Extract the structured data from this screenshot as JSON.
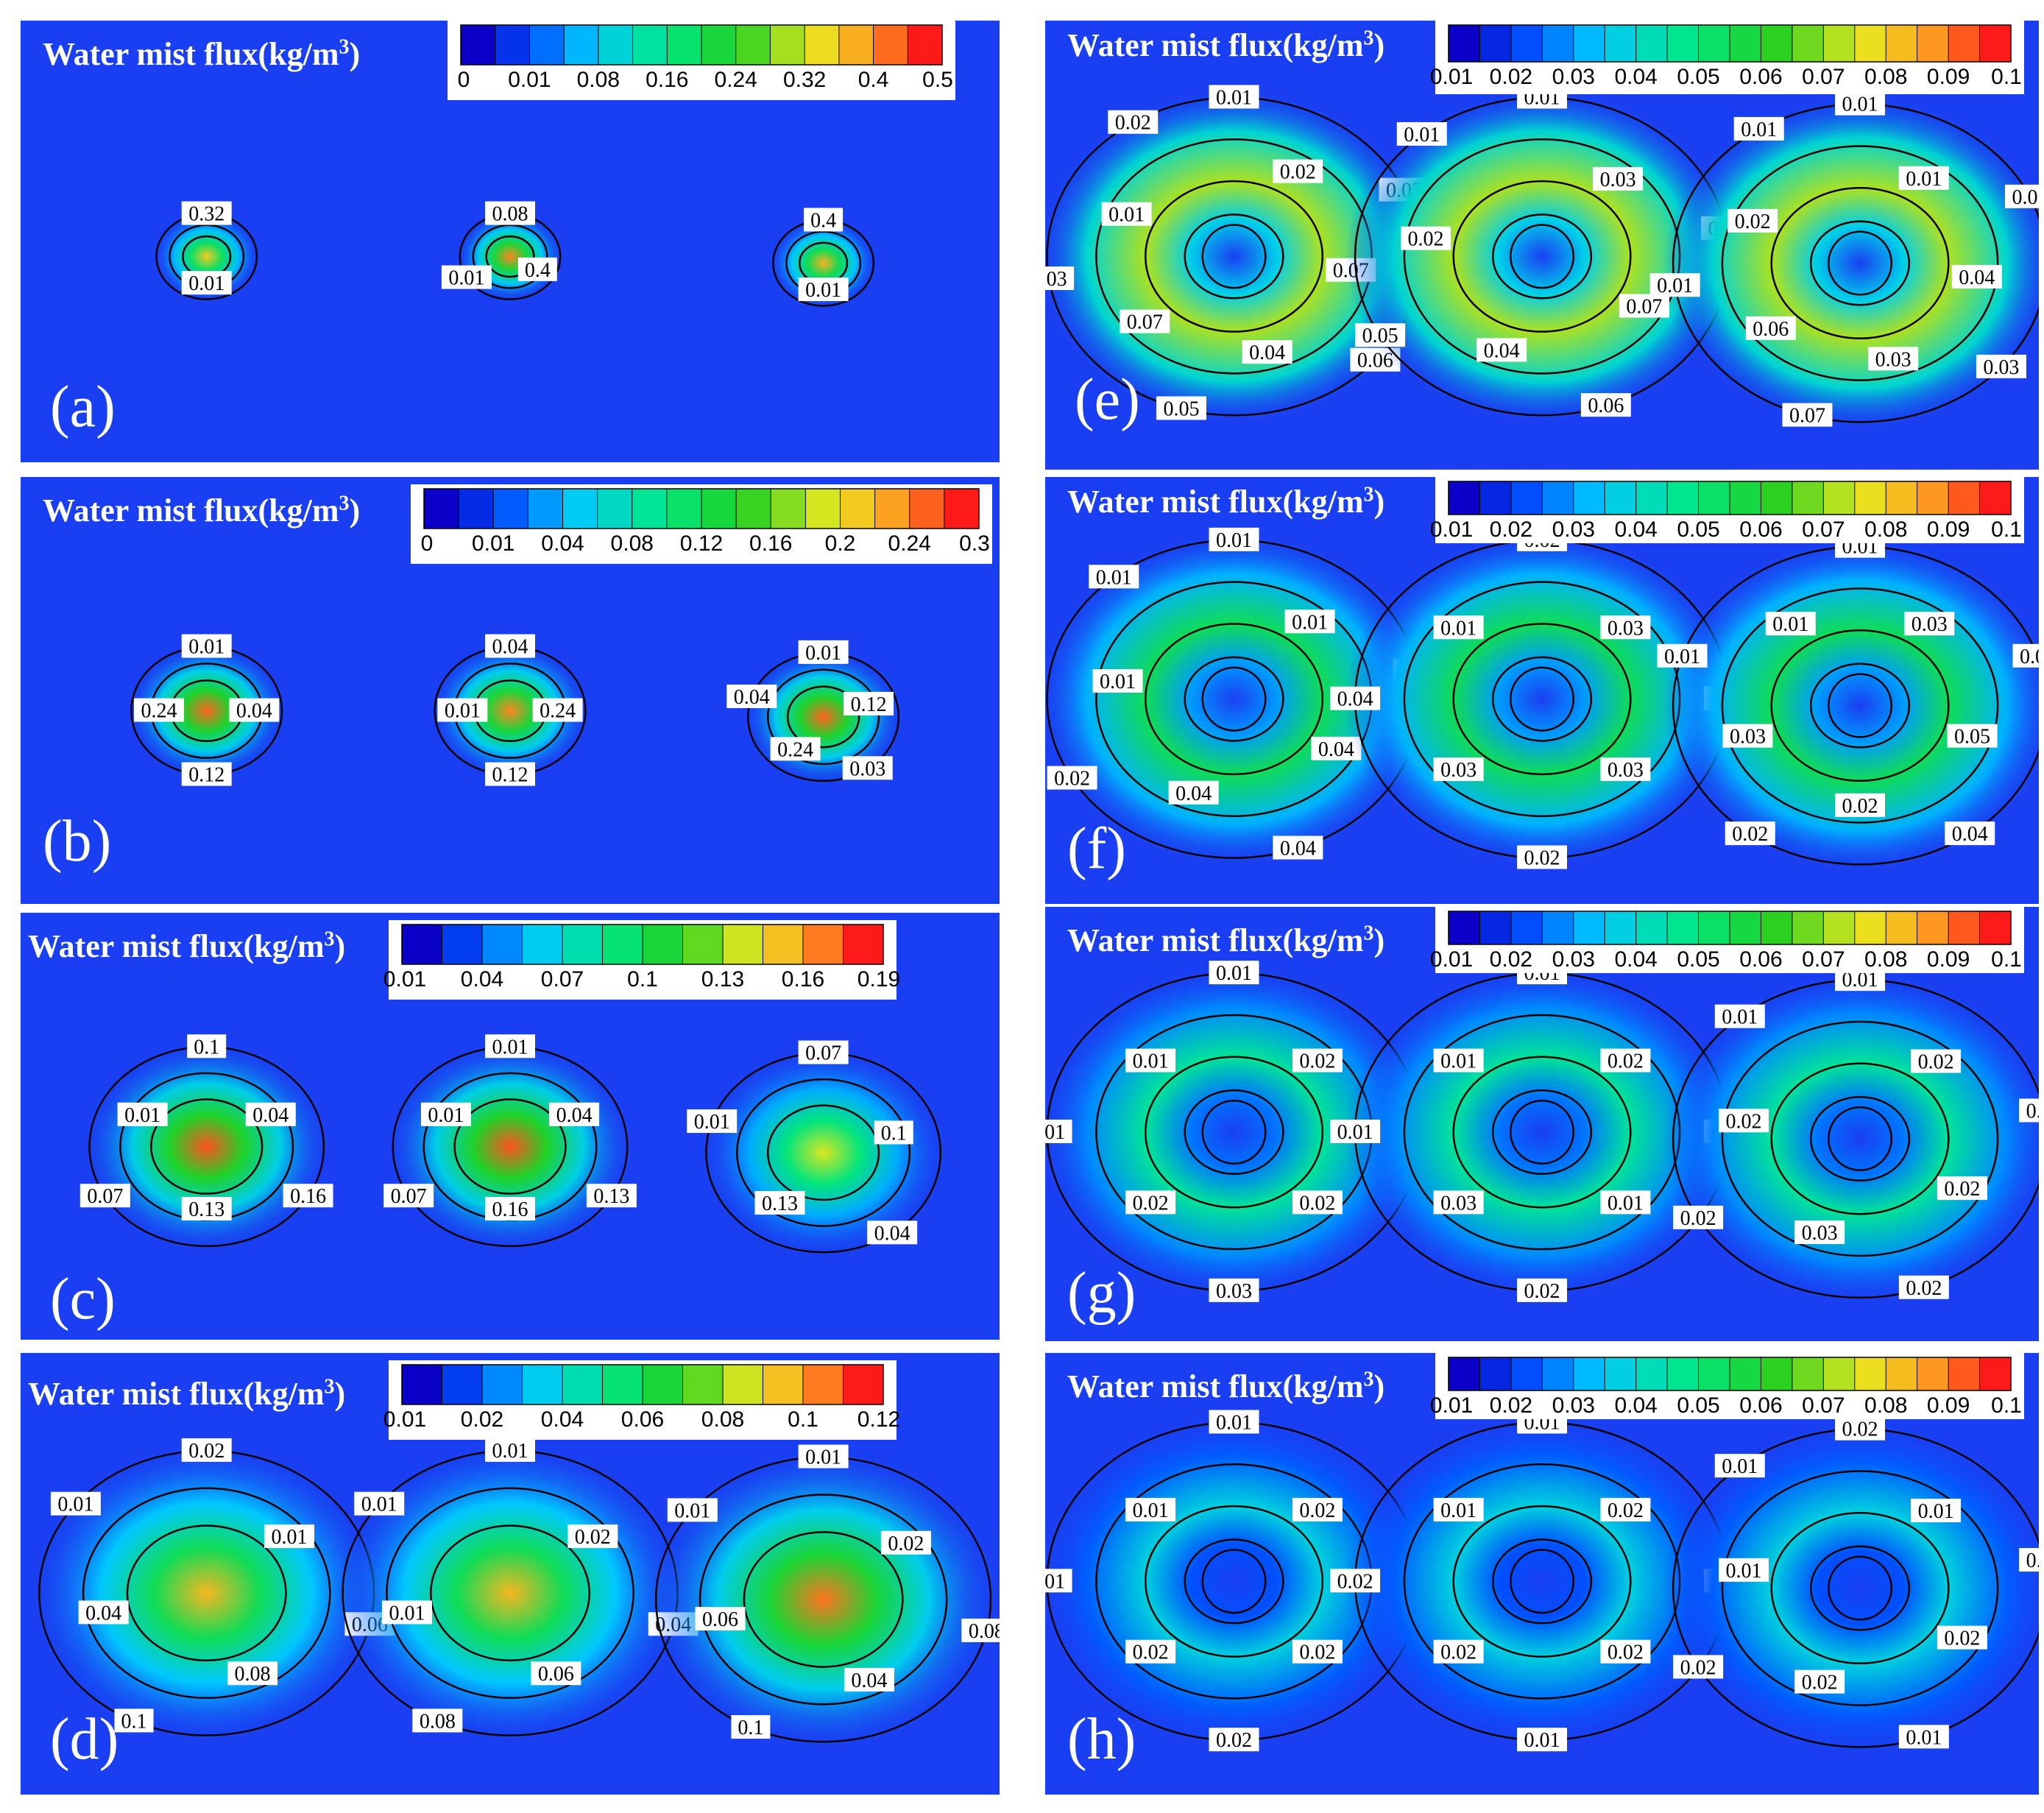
{
  "figure": {
    "title_prefix": "Water mist flux(kg/m",
    "title_exp": "3",
    "title_suffix": ")",
    "colors": {
      "background_blue": "#1a3ff2",
      "contour_line": "#000000",
      "label_box": "#ffffff"
    }
  },
  "chart_data": [
    {
      "type": "heatmap",
      "panel": "(a)",
      "colorbar_ticks": [
        "0",
        "0.01",
        "0.08",
        "0.16",
        "0.24",
        "0.32",
        "0.4",
        "0.5"
      ],
      "vmax": 0.5,
      "hotspots": [
        {
          "peak": 0.4,
          "radius": 0.06,
          "labels": [
            "0.32",
            "0.01"
          ]
        },
        {
          "peak": 0.45,
          "radius": 0.06,
          "labels": [
            "0.08",
            "0.4",
            "0.01"
          ]
        },
        {
          "peak": 0.42,
          "radius": 0.06,
          "labels": [
            "0.4",
            "0.01"
          ]
        }
      ]
    },
    {
      "type": "heatmap",
      "panel": "(b)",
      "colorbar_ticks": [
        "0",
        "0.01",
        "0.04",
        "0.08",
        "0.12",
        "0.16",
        "0.2",
        "0.24",
        "0.3"
      ],
      "vmax": 0.3,
      "hotspots": [
        {
          "peak": 0.28,
          "radius": 0.09,
          "labels": [
            "0.01",
            "0.04",
            "0.12",
            "0.24"
          ]
        },
        {
          "peak": 0.27,
          "radius": 0.09,
          "labels": [
            "0.04",
            "0.24",
            "0.12",
            "0.01"
          ]
        },
        {
          "peak": 0.28,
          "radius": 0.09,
          "labels": [
            "0.01",
            "0.12",
            "0.03",
            "0.24",
            "0.04"
          ]
        }
      ]
    },
    {
      "type": "heatmap",
      "panel": "(c)",
      "colorbar_ticks": [
        "0.01",
        "0.04",
        "0.07",
        "0.1",
        "0.13",
        "0.16",
        "0.19"
      ],
      "vmax": 0.19,
      "hotspots": [
        {
          "peak": 0.18,
          "radius": 0.14,
          "labels": [
            "0.1",
            "0.04",
            "0.16",
            "0.13",
            "0.07",
            "0.01"
          ]
        },
        {
          "peak": 0.18,
          "radius": 0.14,
          "labels": [
            "0.01",
            "0.04",
            "0.13",
            "0.16",
            "0.07",
            "0.01"
          ]
        },
        {
          "peak": 0.14,
          "radius": 0.14,
          "labels": [
            "0.07",
            "0.1",
            "0.04",
            "0.13",
            "0.01"
          ]
        }
      ]
    },
    {
      "type": "heatmap",
      "panel": "(d)",
      "colorbar_ticks": [
        "0.01",
        "0.02",
        "0.04",
        "0.06",
        "0.08",
        "0.1",
        "0.12"
      ],
      "vmax": 0.12,
      "hotspots": [
        {
          "peak": 0.1,
          "radius": 0.2,
          "labels": [
            "0.02",
            "0.01",
            "0.06",
            "0.08",
            "0.1",
            "0.04",
            "0.01"
          ]
        },
        {
          "peak": 0.1,
          "radius": 0.2,
          "labels": [
            "0.01",
            "0.02",
            "0.04",
            "0.06",
            "0.08",
            "0.01",
            "0.01"
          ]
        },
        {
          "peak": 0.11,
          "radius": 0.2,
          "labels": [
            "0.01",
            "0.02",
            "0.08",
            "0.04",
            "0.1",
            "0.06",
            "0.01"
          ]
        }
      ]
    },
    {
      "type": "heatmap",
      "panel": "(e)",
      "colorbar_ticks": [
        "0.01",
        "0.02",
        "0.03",
        "0.04",
        "0.05",
        "0.06",
        "0.07",
        "0.08",
        "0.09",
        "0.1"
      ],
      "vmax": 0.1,
      "hotspots": [
        {
          "peak": 0.07,
          "radius": 0.22,
          "labels": [
            "0.01",
            "0.02",
            "0.03",
            "0.07",
            "0.06",
            "0.04",
            "0.05",
            "0.07",
            "0.03",
            "0.01",
            "0.02"
          ]
        },
        {
          "peak": 0.07,
          "radius": 0.22,
          "labels": [
            "0.01",
            "0.03",
            "0.02",
            "0.07",
            "0.06",
            "0.04",
            "0.05",
            "0.02",
            "0.01"
          ]
        },
        {
          "peak": 0.07,
          "radius": 0.22,
          "labels": [
            "0.01",
            "0.01",
            "0.05",
            "0.04",
            "0.03",
            "0.03",
            "0.07",
            "0.06",
            "0.01",
            "0.02",
            "0.01"
          ]
        }
      ]
    },
    {
      "type": "heatmap",
      "panel": "(f)",
      "colorbar_ticks": [
        "0.01",
        "0.02",
        "0.03",
        "0.04",
        "0.05",
        "0.06",
        "0.07",
        "0.08",
        "0.09",
        "0.1"
      ],
      "vmax": 0.1,
      "hotspots": [
        {
          "peak": 0.05,
          "radius": 0.22,
          "labels": [
            "0.01",
            "0.01",
            "0.03",
            "0.04",
            "0.04",
            "0.04",
            "0.02",
            "0.01",
            "0.01"
          ]
        },
        {
          "peak": 0.05,
          "radius": 0.22,
          "labels": [
            "0.02",
            "0.03",
            "0.02",
            "0.03",
            "0.02",
            "0.03",
            "0.04",
            "0.01"
          ]
        },
        {
          "peak": 0.05,
          "radius": 0.22,
          "labels": [
            "0.01",
            "0.03",
            "0.02",
            "0.05",
            "0.04",
            "0.02",
            "0.02",
            "0.03",
            "0.01",
            "0.01"
          ]
        }
      ]
    },
    {
      "type": "heatmap",
      "panel": "(g)",
      "colorbar_ticks": [
        "0.01",
        "0.02",
        "0.03",
        "0.04",
        "0.05",
        "0.06",
        "0.07",
        "0.08",
        "0.09",
        "0.1"
      ],
      "vmax": 0.1,
      "hotspots": [
        {
          "peak": 0.04,
          "radius": 0.22,
          "labels": [
            "0.01",
            "0.02",
            "0.03",
            "0.02",
            "0.03",
            "0.02",
            "0.01",
            "0.01"
          ]
        },
        {
          "peak": 0.04,
          "radius": 0.22,
          "labels": [
            "0.01",
            "0.02",
            "0.03",
            "0.01",
            "0.02",
            "0.03",
            "0.01",
            "0.01"
          ]
        },
        {
          "peak": 0.04,
          "radius": 0.22,
          "labels": [
            "0.01",
            "0.02",
            "0.03",
            "0.02",
            "0.02",
            "0.03",
            "0.02",
            "0.02",
            "0.01"
          ]
        }
      ]
    },
    {
      "type": "heatmap",
      "panel": "(h)",
      "colorbar_ticks": [
        "0.01",
        "0.02",
        "0.03",
        "0.04",
        "0.05",
        "0.06",
        "0.07",
        "0.08",
        "0.09",
        "0.1"
      ],
      "vmax": 0.1,
      "hotspots": [
        {
          "peak": 0.03,
          "radius": 0.22,
          "labels": [
            "0.01",
            "0.02",
            "0.02",
            "0.02",
            "0.02",
            "0.02",
            "0.01",
            "0.01"
          ]
        },
        {
          "peak": 0.03,
          "radius": 0.22,
          "labels": [
            "0.01",
            "0.02",
            "0.02",
            "0.02",
            "0.01",
            "0.02",
            "0.02",
            "0.01"
          ]
        },
        {
          "peak": 0.03,
          "radius": 0.22,
          "labels": [
            "0.02",
            "0.01",
            "0.02",
            "0.02",
            "0.01",
            "0.02",
            "0.02",
            "0.01",
            "0.01"
          ]
        }
      ]
    }
  ]
}
